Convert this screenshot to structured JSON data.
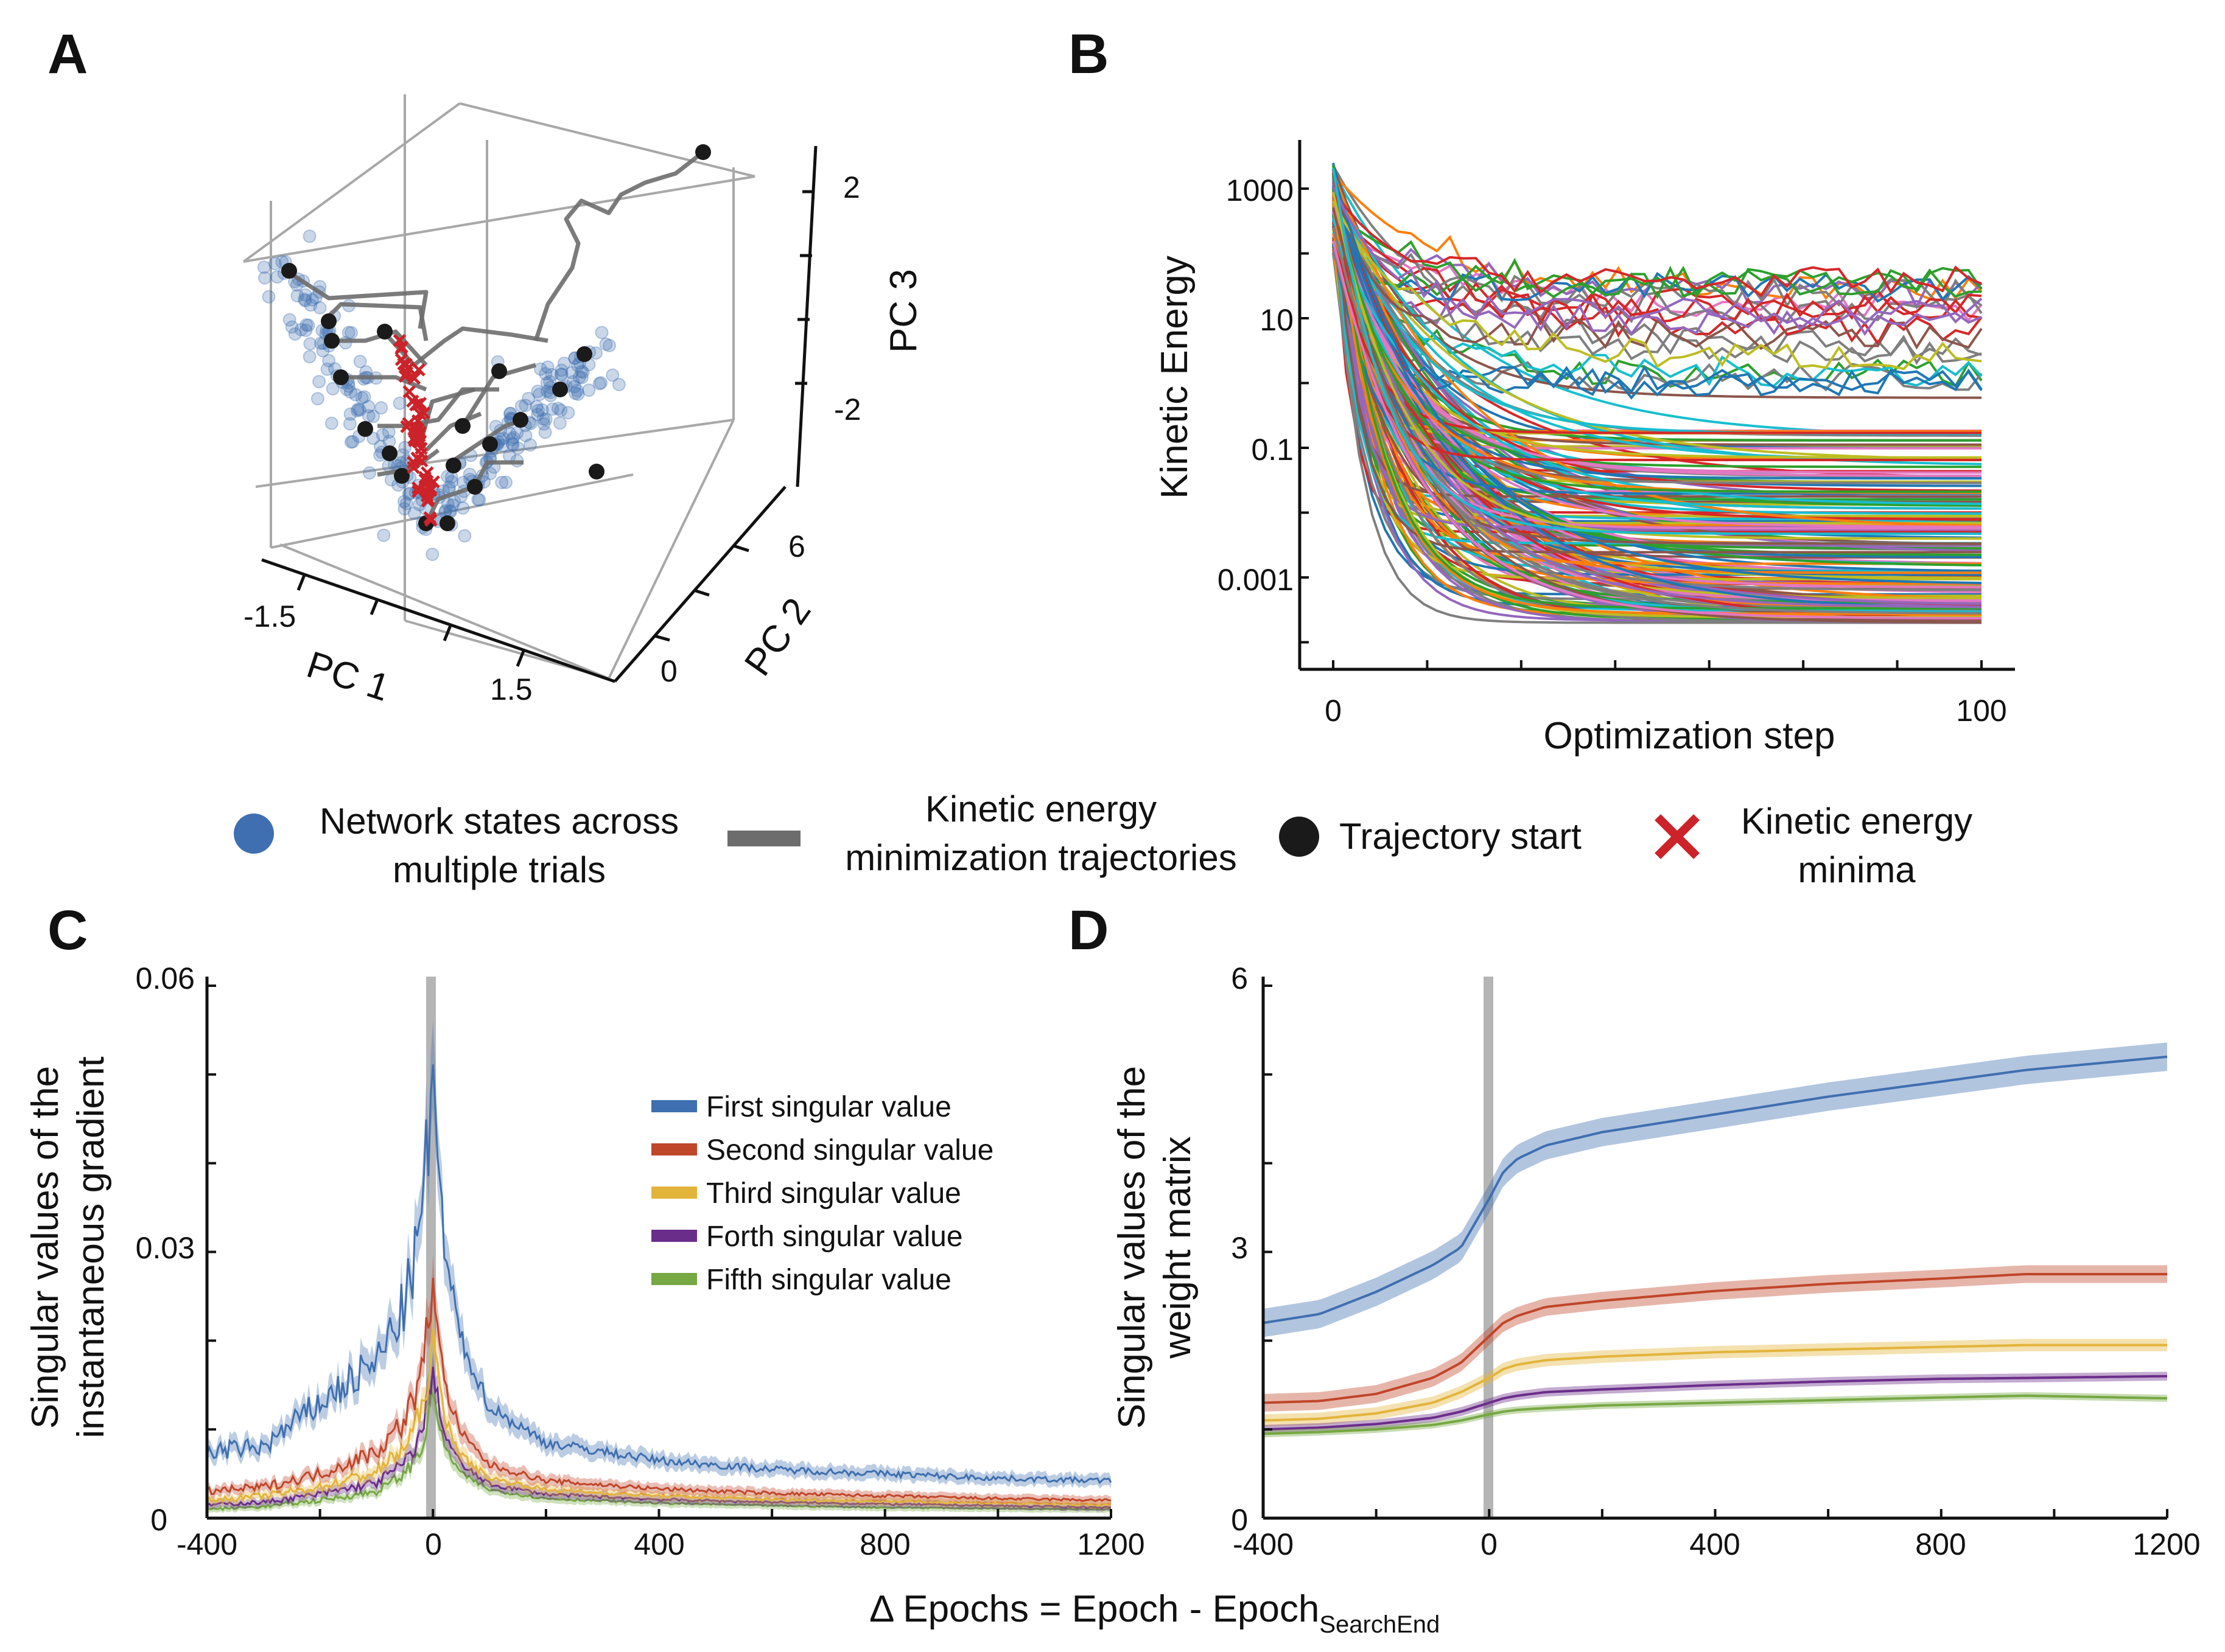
{
  "panels": {
    "A": {
      "label": "A",
      "type": "3d-scatter",
      "axes": {
        "x": {
          "label": "PC 1",
          "ticks": [
            "-1.5",
            "1.5"
          ]
        },
        "y": {
          "label": "PC 2",
          "ticks": [
            "0",
            "6"
          ]
        },
        "z": {
          "label": "PC 3",
          "ticks": [
            "2",
            "-2"
          ]
        }
      }
    },
    "B": {
      "label": "B",
      "xlabel": "Optimization step",
      "ylabel": "Kinetic Energy",
      "xticks": [
        "0",
        "100"
      ],
      "yticks": [
        "1000",
        "10",
        "0.1",
        "0.001"
      ]
    },
    "C": {
      "label": "C",
      "ylabel_line1": "Singular values of the",
      "ylabel_line2": "instantaneous gradient",
      "yticks": [
        "0.06",
        "0.03",
        "0"
      ],
      "xticks": [
        "-400",
        "0",
        "400",
        "800",
        "1200"
      ]
    },
    "D": {
      "label": "D",
      "ylabel_line1": "Singular values of the",
      "ylabel_line2": "weight matrix",
      "yticks": [
        "6",
        "3",
        "0"
      ],
      "xticks": [
        "-400",
        "0",
        "400",
        "800",
        "1200"
      ]
    }
  },
  "shared_xlabel": {
    "main": "Δ Epochs = Epoch - Epoch",
    "subscript": "SearchEnd"
  },
  "legend_top": {
    "items": [
      {
        "line1": "Network states across",
        "line2": "multiple trials",
        "color": "#3f6fb0",
        "icon": "circle-icon"
      },
      {
        "line1": "Kinetic energy",
        "line2": "minimization trajectories",
        "color": "#6d6d6d",
        "icon": "line-icon"
      },
      {
        "line1": "Trajectory start",
        "line2": "",
        "color": "#1a1a1a",
        "icon": "circle-icon"
      },
      {
        "line1": "Kinetic energy",
        "line2": "minima",
        "color": "#cc2229",
        "icon": "cross-icon"
      }
    ]
  },
  "legend_c": {
    "items": [
      {
        "label": "First singular value",
        "color": "#3f6fb0"
      },
      {
        "label": "Second singular value",
        "color": "#c0462a"
      },
      {
        "label": "Third singular value",
        "color": "#e3b43a"
      },
      {
        "label": "Forth singular value",
        "color": "#6b2d8a"
      },
      {
        "label": "Fifth singular value",
        "color": "#76a843"
      }
    ]
  },
  "chart_data": [
    {
      "panel": "A",
      "type": "scatter",
      "title": "",
      "series": [
        {
          "name": "Network states across multiple trials",
          "color": "#3f6fb0",
          "values": "scattered point cloud in V shape"
        },
        {
          "name": "Kinetic energy minima",
          "color": "#cc2229",
          "values": "points along the valley line"
        }
      ],
      "xlabel": "PC 1",
      "ylabel": "PC 2",
      "zlabel": "PC 3",
      "xlim": [
        -1.5,
        1.5
      ],
      "ylim": [
        0,
        6
      ],
      "zlim": [
        -2,
        2
      ]
    },
    {
      "panel": "B",
      "type": "line",
      "yscale": "log",
      "xlabel": "Optimization step",
      "ylabel": "Kinetic Energy",
      "xlim": [
        0,
        100
      ],
      "ylim": [
        0.0001,
        3000
      ],
      "series_count": 200,
      "start_range": [
        100,
        2500
      ],
      "end_range": [
        0.0001,
        50
      ]
    },
    {
      "panel": "C",
      "type": "line",
      "xlabel": "Δ Epochs = Epoch - Epoch_SearchEnd",
      "ylabel": "Singular values of the instantaneous gradient",
      "xlim": [
        -400,
        1200
      ],
      "ylim": [
        0,
        0.06
      ],
      "x": [
        -400,
        -300,
        -200,
        -100,
        -50,
        -20,
        0,
        20,
        50,
        100,
        200,
        400,
        600,
        800,
        1000,
        1200
      ],
      "series": [
        {
          "name": "First singular value",
          "values": [
            0.0075,
            0.008,
            0.013,
            0.0175,
            0.024,
            0.033,
            0.05,
            0.03,
            0.02,
            0.0125,
            0.0085,
            0.0065,
            0.0055,
            0.005,
            0.0045,
            0.0042
          ]
        },
        {
          "name": "Second singular value",
          "values": [
            0.003,
            0.0035,
            0.005,
            0.0075,
            0.011,
            0.016,
            0.027,
            0.015,
            0.0095,
            0.006,
            0.0042,
            0.0033,
            0.0028,
            0.0025,
            0.0022,
            0.002
          ]
        },
        {
          "name": "Third singular value",
          "values": [
            0.002,
            0.0025,
            0.0035,
            0.0052,
            0.008,
            0.012,
            0.02,
            0.0115,
            0.007,
            0.0045,
            0.0032,
            0.0025,
            0.0021,
            0.0019,
            0.0017,
            0.0015
          ]
        },
        {
          "name": "Forth singular value",
          "values": [
            0.0015,
            0.0018,
            0.0027,
            0.004,
            0.0062,
            0.0095,
            0.0165,
            0.0095,
            0.006,
            0.0038,
            0.0027,
            0.0021,
            0.0018,
            0.0016,
            0.0014,
            0.0012
          ]
        },
        {
          "name": "Fifth singular value",
          "values": [
            0.001,
            0.0013,
            0.002,
            0.003,
            0.005,
            0.0078,
            0.014,
            0.008,
            0.005,
            0.0032,
            0.0022,
            0.0017,
            0.0014,
            0.0012,
            0.0011,
            0.001
          ]
        }
      ]
    },
    {
      "panel": "D",
      "type": "line",
      "xlabel": "Δ Epochs = Epoch - Epoch_SearchEnd",
      "ylabel": "Singular values of the weight matrix",
      "xlim": [
        -400,
        1200
      ],
      "ylim": [
        0,
        6
      ],
      "x": [
        -400,
        -300,
        -200,
        -100,
        -50,
        0,
        25,
        50,
        100,
        200,
        400,
        600,
        800,
        950,
        1200
      ],
      "series": [
        {
          "name": "First singular value",
          "values": [
            2.2,
            2.3,
            2.55,
            2.85,
            3.05,
            3.6,
            3.9,
            4.05,
            4.2,
            4.35,
            4.55,
            4.75,
            4.92,
            5.05,
            5.2
          ]
        },
        {
          "name": "Second singular value",
          "values": [
            1.3,
            1.32,
            1.4,
            1.58,
            1.75,
            2.05,
            2.2,
            2.28,
            2.38,
            2.45,
            2.56,
            2.64,
            2.7,
            2.75,
            2.75
          ]
        },
        {
          "name": "Third singular value",
          "values": [
            1.1,
            1.12,
            1.18,
            1.3,
            1.42,
            1.58,
            1.68,
            1.73,
            1.78,
            1.82,
            1.87,
            1.9,
            1.93,
            1.95,
            1.95
          ]
        },
        {
          "name": "Forth singular value",
          "values": [
            1.0,
            1.02,
            1.06,
            1.13,
            1.2,
            1.3,
            1.35,
            1.38,
            1.42,
            1.45,
            1.5,
            1.54,
            1.57,
            1.58,
            1.6
          ]
        },
        {
          "name": "Fifth singular value",
          "values": [
            0.95,
            0.97,
            1.0,
            1.05,
            1.1,
            1.17,
            1.2,
            1.22,
            1.24,
            1.27,
            1.3,
            1.33,
            1.36,
            1.38,
            1.35
          ]
        }
      ]
    }
  ]
}
